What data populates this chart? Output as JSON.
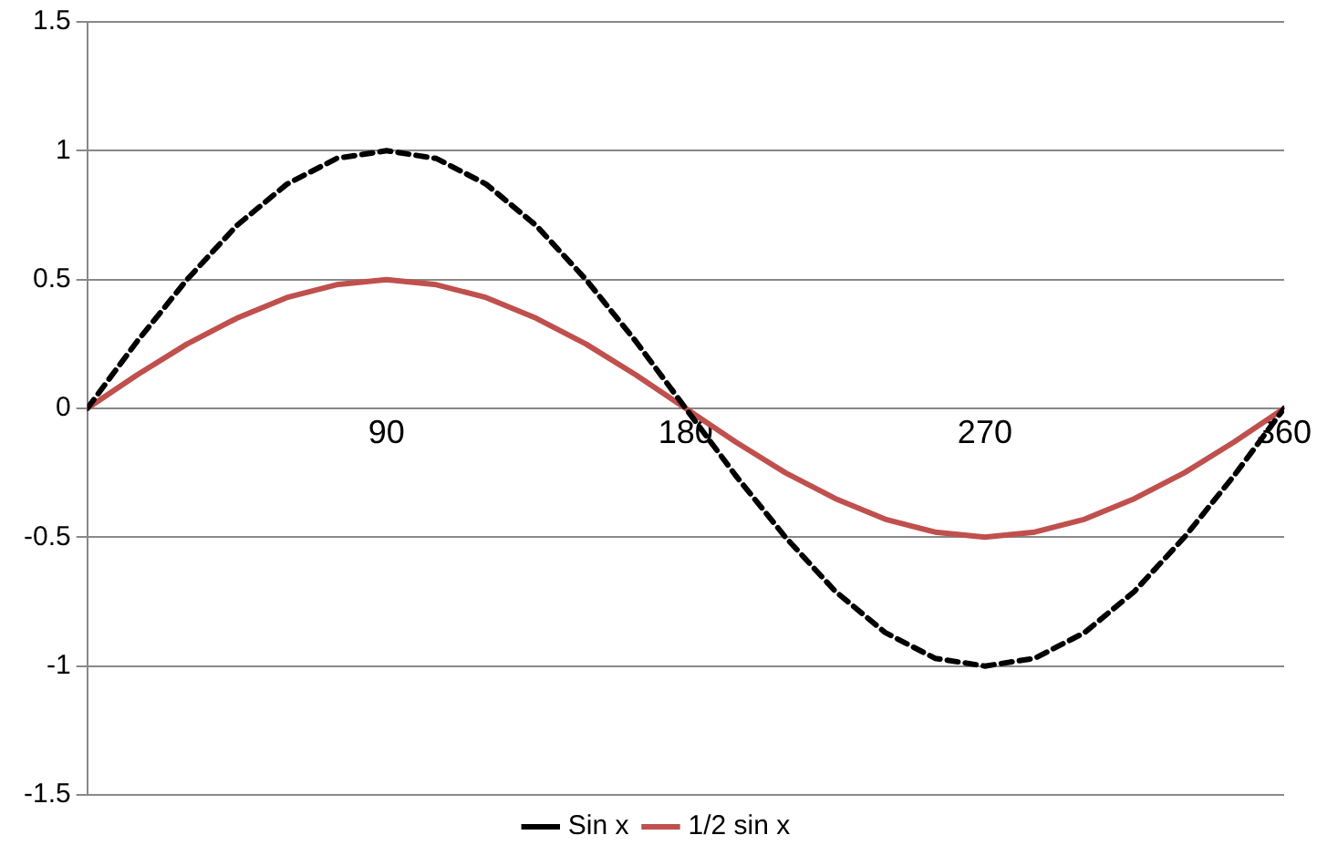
{
  "chart_data": {
    "type": "line",
    "x": [
      0,
      15,
      30,
      45,
      60,
      75,
      90,
      105,
      120,
      135,
      150,
      165,
      180,
      195,
      210,
      225,
      240,
      255,
      270,
      285,
      300,
      315,
      330,
      345,
      360
    ],
    "series": [
      {
        "name": "Sin x",
        "color": "#000000",
        "line_style": "dashed",
        "values": [
          0,
          0.26,
          0.5,
          0.71,
          0.87,
          0.97,
          1,
          0.97,
          0.87,
          0.71,
          0.5,
          0.26,
          0,
          -0.26,
          -0.5,
          -0.71,
          -0.87,
          -0.97,
          -1,
          -0.97,
          -0.87,
          -0.71,
          -0.5,
          -0.26,
          0
        ]
      },
      {
        "name": "1/2 sin x",
        "color": "#c0504d",
        "line_style": "solid",
        "values": [
          0,
          0.13,
          0.25,
          0.35,
          0.43,
          0.48,
          0.5,
          0.48,
          0.43,
          0.35,
          0.25,
          0.13,
          0,
          -0.13,
          -0.25,
          -0.35,
          -0.43,
          -0.48,
          -0.5,
          -0.48,
          -0.43,
          -0.35,
          -0.25,
          -0.13,
          0
        ]
      }
    ],
    "xlim": [
      0,
      360
    ],
    "xticks": [
      90,
      180,
      270,
      360
    ],
    "ylim": [
      -1.5,
      1.5
    ],
    "yticks": [
      -1.5,
      -1,
      -0.5,
      0,
      0.5,
      1,
      1.5
    ],
    "grid": "y",
    "legend": "bottom",
    "marker": "none"
  }
}
